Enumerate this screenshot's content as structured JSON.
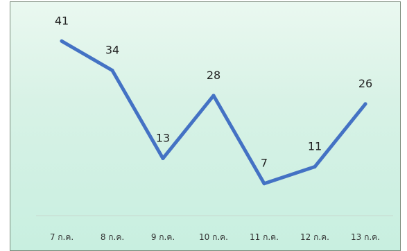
{
  "chart_data": {
    "type": "line",
    "categories": [
      "7 ก.ค.",
      "8 ก.ค.",
      "9 ก.ค.",
      "10 ก.ค.",
      "11 ก.ค.",
      "12 ก.ค.",
      "13 ก.ค."
    ],
    "series": [
      {
        "values": [
          41,
          34,
          13,
          28,
          7,
          11,
          26
        ],
        "color": "#4472c4"
      }
    ],
    "data_labels": true,
    "ylim": [
      0,
      48
    ],
    "grid": false,
    "legend": "none",
    "title": "",
    "xlabel": "",
    "ylabel": ""
  }
}
